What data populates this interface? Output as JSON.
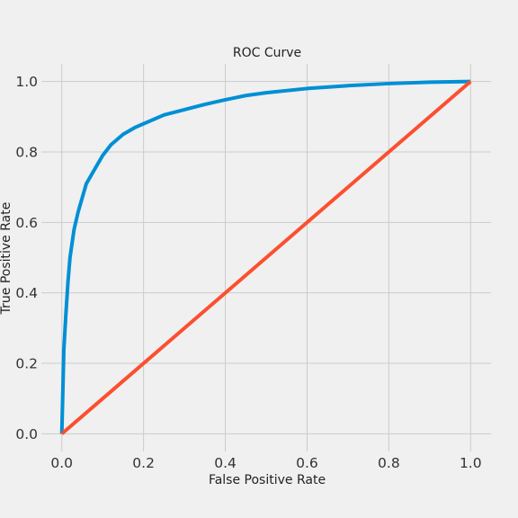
{
  "chart_data": {
    "type": "line",
    "title": "ROC Curve",
    "xlabel": "False Positive Rate",
    "ylabel": "True Positive Rate",
    "xlim": [
      -0.05,
      1.05
    ],
    "ylim": [
      -0.05,
      1.05
    ],
    "xticks": [
      0.0,
      0.2,
      0.4,
      0.6,
      0.8,
      1.0
    ],
    "yticks": [
      0.0,
      0.2,
      0.4,
      0.6,
      0.8,
      1.0
    ],
    "xtick_labels": [
      "0.0",
      "0.2",
      "0.4",
      "0.6",
      "0.8",
      "1.0"
    ],
    "ytick_labels": [
      "0.0",
      "0.2",
      "0.4",
      "0.6",
      "0.8",
      "1.0"
    ],
    "grid": true,
    "legend": "none",
    "series": [
      {
        "color": "#008fd5",
        "x": [
          0.0,
          0.005,
          0.01,
          0.015,
          0.02,
          0.03,
          0.04,
          0.05,
          0.06,
          0.08,
          0.1,
          0.12,
          0.15,
          0.18,
          0.2,
          0.25,
          0.3,
          0.35,
          0.4,
          0.45,
          0.5,
          0.6,
          0.7,
          0.8,
          0.9,
          1.0
        ],
        "y": [
          0.0,
          0.24,
          0.34,
          0.43,
          0.5,
          0.58,
          0.63,
          0.67,
          0.71,
          0.75,
          0.79,
          0.82,
          0.85,
          0.87,
          0.88,
          0.905,
          0.92,
          0.935,
          0.948,
          0.96,
          0.968,
          0.98,
          0.988,
          0.994,
          0.998,
          1.0
        ]
      },
      {
        "color": "#fc4f30",
        "x": [
          0.0,
          1.0
        ],
        "y": [
          0.0,
          1.0
        ]
      }
    ]
  }
}
